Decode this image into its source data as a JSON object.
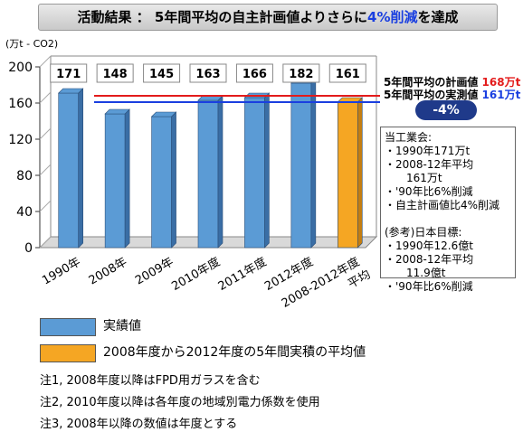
{
  "header": {
    "title_prefix": "活動結果 ： 5年間平均の自主計画値よりさらに",
    "title_highlight": "4%削減",
    "title_suffix": "を達成"
  },
  "chart_data": {
    "type": "bar",
    "ylabel": "(万t - CO2)",
    "ylim": [
      0,
      200
    ],
    "yticks": [
      0,
      40,
      80,
      120,
      160,
      200
    ],
    "categories": [
      "1990年",
      "2008年",
      "2009年",
      "2010年度",
      "2011年度",
      "2012年度",
      "2008-2012年度\n平均"
    ],
    "values": [
      171,
      148,
      145,
      163,
      166,
      182,
      161
    ],
    "data_labels": [
      "171",
      "148",
      "145",
      "163",
      "166",
      "182",
      "161"
    ],
    "bar_colors": [
      "#5b9bd5",
      "#5b9bd5",
      "#5b9bd5",
      "#5b9bd5",
      "#5b9bd5",
      "#5b9bd5",
      "#f5a623"
    ],
    "reference_lines": [
      {
        "label": "5年間平均の計画値",
        "value": 168,
        "value_label": "168万t",
        "color": "#e31b1b"
      },
      {
        "label": "5年間平均の実測値",
        "value": 161,
        "value_label": "161万t",
        "color": "#1a3fe0"
      }
    ],
    "grid": false
  },
  "badge": {
    "text": "-4%"
  },
  "info_box": {
    "lines": [
      "当工業会:",
      "・1990年171万t",
      "・2008-12年平均",
      "　　161万t",
      "・'90年比6%削減",
      "・自主計画値比4%削減",
      "",
      "(参考)日本目標:",
      "・1990年12.6億t",
      "・2008-12年平均",
      "　　11.9億t",
      "・'90年比6%削減"
    ]
  },
  "legend": [
    {
      "label": "実績値",
      "color": "#5b9bd5"
    },
    {
      "label": "2008年度から2012年度の5年間実積の平均値",
      "color": "#f5a623"
    }
  ],
  "notes": [
    "注1, 2008年度以降はFPD用ガラスを含む",
    "注2, 2010年度以降は各年度の地域別電力係数を使用",
    "注3, 2008年以降の数値は年度とする"
  ]
}
